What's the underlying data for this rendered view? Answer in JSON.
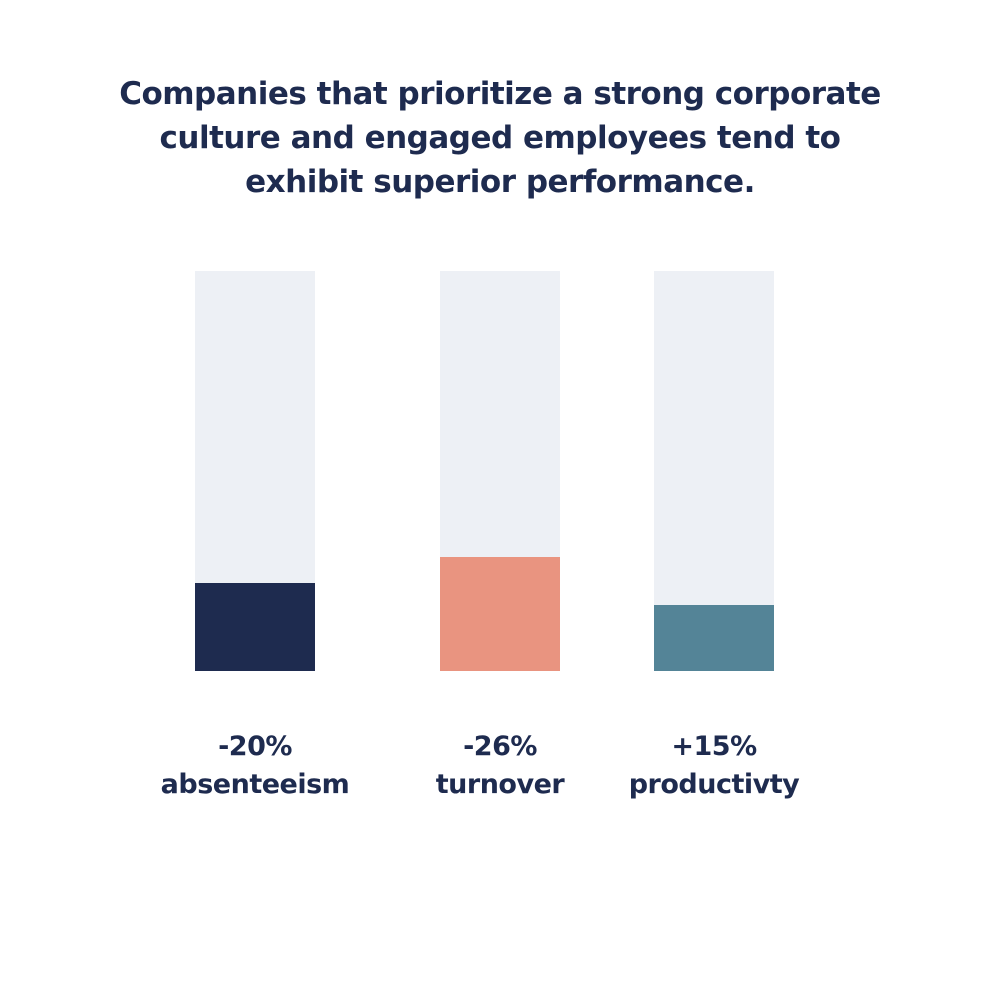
{
  "chart_data": {
    "type": "bar",
    "title": "Companies that prioritize a strong corporate culture and engaged employees tend to exhibit superior performance.",
    "categories": [
      "absenteeism",
      "turnover",
      "productivty"
    ],
    "values": [
      -20,
      -26,
      15
    ],
    "display_values": [
      "-20%",
      "-26%",
      "+15%"
    ],
    "colors": [
      "#1e2b4f",
      "#e99480",
      "#548497"
    ],
    "track_color": "#edf0f5",
    "ylim": [
      0,
      91
    ],
    "grid": false,
    "legend": "none",
    "xlabel": "",
    "ylabel": ""
  }
}
